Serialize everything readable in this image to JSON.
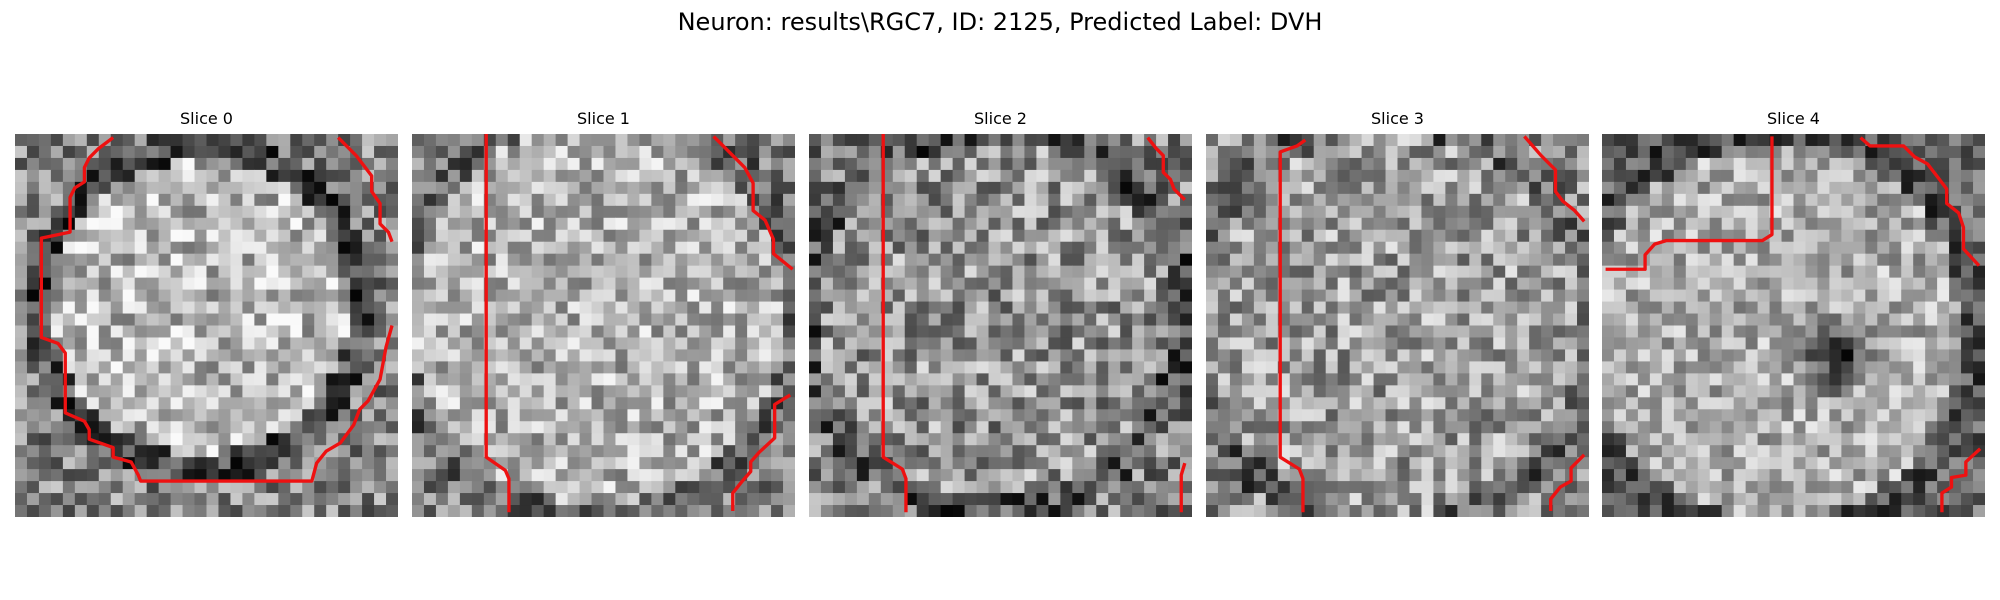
{
  "figure": {
    "title": "Neuron: results\\RGC7, ID: 2125, Predicted Label: DVH"
  },
  "panels": [
    {
      "title": "Slice 0"
    },
    {
      "title": "Slice 1"
    },
    {
      "title": "Slice 2"
    },
    {
      "title": "Slice 3"
    },
    {
      "title": "Slice 4"
    }
  ],
  "colors": {
    "contour": "#ee1111",
    "background": "#ffffff",
    "colormap": "gray"
  },
  "image": {
    "grid_size": 32
  }
}
